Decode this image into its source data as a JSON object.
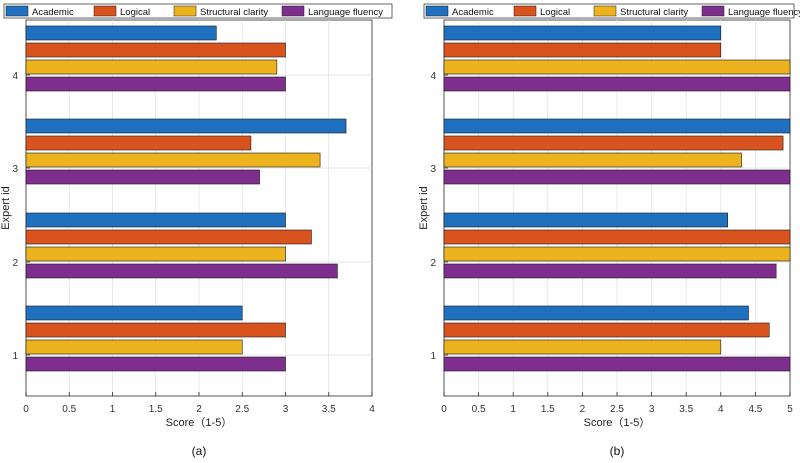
{
  "colors": {
    "Academic": "#1f70be",
    "Logical": "#d9531e",
    "Structural clarity": "#ecb31f",
    "Language fluency": "#7e2f8e"
  },
  "chart_data": [
    {
      "type": "bar",
      "orientation": "horizontal",
      "caption": "(a)",
      "xlabel": "Score（1-5）",
      "ylabel": "Expert id",
      "xlim": [
        0,
        4
      ],
      "xticks": [
        "0",
        "0.5",
        "1",
        "1.5",
        "2",
        "2.5",
        "3",
        "3.5",
        "4"
      ],
      "grid": true,
      "legend_position": "top",
      "categories": [
        "1",
        "2",
        "3",
        "4"
      ],
      "series": [
        {
          "name": "Academic",
          "values": [
            2.5,
            3.0,
            3.7,
            2.2
          ]
        },
        {
          "name": "Logical",
          "values": [
            3.0,
            3.3,
            2.6,
            3.0
          ]
        },
        {
          "name": "Structural clarity",
          "values": [
            2.5,
            3.0,
            3.4,
            2.9
          ]
        },
        {
          "name": "Language fluency",
          "values": [
            3.0,
            3.6,
            2.7,
            3.0
          ]
        }
      ]
    },
    {
      "type": "bar",
      "orientation": "horizontal",
      "caption": "(b)",
      "xlabel": "Score（1-5）",
      "ylabel": "Expert id",
      "xlim": [
        0,
        5
      ],
      "xticks": [
        "0",
        "0.5",
        "1",
        "1.5",
        "2",
        "2.5",
        "3",
        "3.5",
        "4",
        "4.5",
        "5"
      ],
      "grid": true,
      "legend_position": "top",
      "categories": [
        "1",
        "2",
        "3",
        "4"
      ],
      "series": [
        {
          "name": "Academic",
          "values": [
            4.4,
            4.1,
            5.0,
            4.0
          ]
        },
        {
          "name": "Logical",
          "values": [
            4.7,
            5.0,
            4.9,
            4.0
          ]
        },
        {
          "name": "Structural clarity",
          "values": [
            4.0,
            5.0,
            4.3,
            5.0
          ]
        },
        {
          "name": "Language fluency",
          "values": [
            5.0,
            4.8,
            5.0,
            5.0
          ]
        }
      ]
    }
  ]
}
